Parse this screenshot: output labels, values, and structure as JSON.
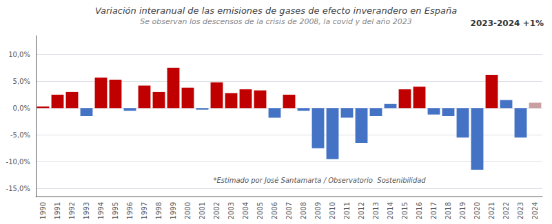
{
  "chart_data": {
    "type": "bar",
    "title": "Variación interanual de las emisiones de gases de efecto inverandero en España",
    "subtitle": "Se observan los descensos de la crisis de 2008, la covid y del año 2023",
    "annotations": [
      "2023-2024 +1%",
      "*Estimado por José Santamarta / Observatorio  Sostenibilidad"
    ],
    "categories": [
      "1990",
      "1991",
      "1992",
      "1993",
      "1994",
      "1995",
      "1996",
      "1997",
      "1998",
      "1999",
      "2000",
      "2001",
      "2002",
      "2003",
      "2004",
      "2005",
      "2006",
      "2007",
      "2008",
      "2009",
      "2010",
      "2011",
      "2012",
      "2013",
      "2014",
      "2015",
      "2016",
      "2017",
      "2018",
      "2019",
      "2020",
      "2021",
      "2022",
      "2023",
      "2024"
    ],
    "values": [
      0.3,
      2.5,
      3.0,
      -1.5,
      5.7,
      5.3,
      -0.5,
      4.2,
      3.0,
      7.5,
      3.8,
      -0.3,
      4.8,
      2.8,
      3.5,
      3.3,
      -1.8,
      2.5,
      -0.5,
      -7.5,
      -9.5,
      -1.8,
      -6.5,
      -1.5,
      0.8,
      3.5,
      4.0,
      -1.2,
      -1.5,
      -5.5,
      -11.5,
      6.2,
      1.5,
      -5.5,
      1.0
    ],
    "colors": [
      "#c00000",
      "#c00000",
      "#c00000",
      "#4472c4",
      "#c00000",
      "#c00000",
      "#4472c4",
      "#c00000",
      "#c00000",
      "#c00000",
      "#c00000",
      "#4472c4",
      "#c00000",
      "#c00000",
      "#c00000",
      "#c00000",
      "#4472c4",
      "#c00000",
      "#4472c4",
      "#4472c4",
      "#4472c4",
      "#4472c4",
      "#4472c4",
      "#4472c4",
      "#4472c4",
      "#c00000",
      "#c00000",
      "#4472c4",
      "#4472c4",
      "#4472c4",
      "#4472c4",
      "#c00000",
      "#4472c4",
      "#4472c4",
      "#c8a0a0"
    ],
    "ylim": [
      -16.5,
      13.5
    ],
    "yticks": [
      {
        "value": -15.0,
        "label": "-15,0%"
      },
      {
        "value": -10.0,
        "label": "-10,0%"
      },
      {
        "value": -5.0,
        "label": "-5,0%"
      },
      {
        "value": 0.0,
        "label": "0,0%"
      },
      {
        "value": 5.0,
        "label": "5,0%"
      },
      {
        "value": 10.0,
        "label": "10,0%"
      }
    ],
    "grid": true
  }
}
